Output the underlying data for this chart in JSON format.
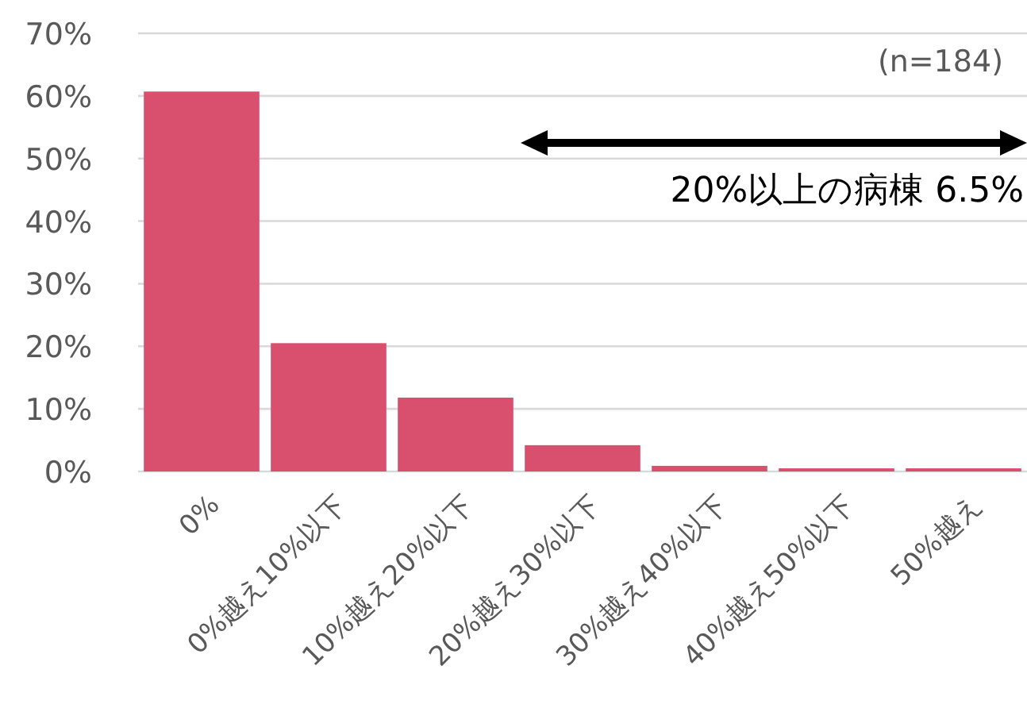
{
  "chart_data": {
    "type": "bar",
    "categories": [
      "0%",
      "0%越え10%以下",
      "10%越え20%以下",
      "20%越え30%以下",
      "30%越え40%以下",
      "40%越え50%以下",
      "50%越え"
    ],
    "values": [
      60.7,
      20.5,
      11.8,
      4.2,
      0.9,
      0.5,
      0.5
    ],
    "color": "#d94f6e",
    "ylim": [
      0,
      70
    ],
    "yticks": [
      {
        "value": 0,
        "label": "0%"
      },
      {
        "value": 10,
        "label": "10%"
      },
      {
        "value": 20,
        "label": "20%"
      },
      {
        "value": 30,
        "label": "30%"
      },
      {
        "value": 40,
        "label": "40%"
      },
      {
        "value": 50,
        "label": "50%"
      },
      {
        "value": 60,
        "label": "60%"
      },
      {
        "value": 70,
        "label": "70%"
      }
    ],
    "grid": "y",
    "annotations": [
      "(n=184)",
      "20%以上の病棟 6.5%"
    ]
  }
}
